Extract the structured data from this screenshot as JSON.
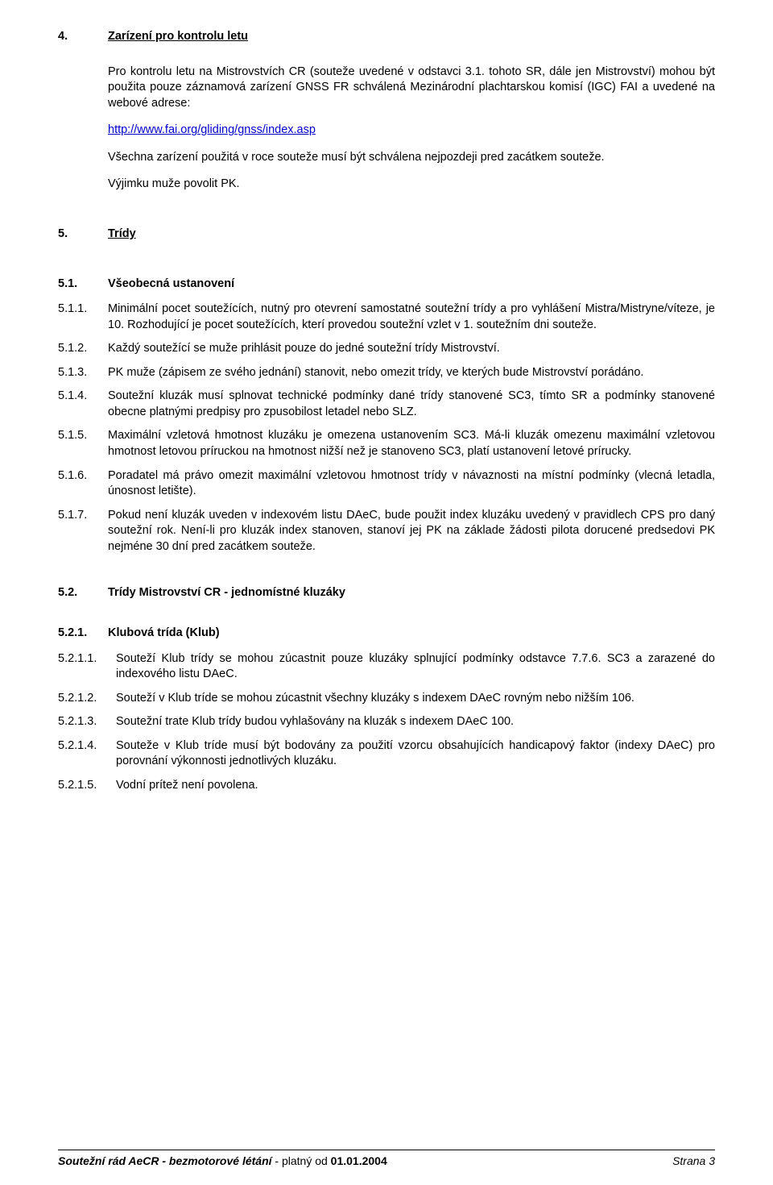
{
  "sec4": {
    "num": "4.",
    "title": "Zarízení pro kontrolu letu",
    "p1a": "Pro kontrolu letu na Mistrovstvích CR (souteže uvedené v odstavci 3.1. tohoto SR, dále jen Mistrovství) mohou být použita pouze záznamová zarízení GNSS FR schválená Mezinárodní plachtarskou komisí (IGC) FAI a uvedené na webové adrese:",
    "url": "http://www.fai.org/gliding/gnss/index.asp",
    "p2": "Všechna zarízení použitá v roce souteže musí být schválena nejpozdeji pred zacátkem souteže.",
    "p3": "Výjimku muže povolit PK."
  },
  "sec5": {
    "num": "5.",
    "title": "Trídy"
  },
  "sec51": {
    "num": "5.1.",
    "title": "Všeobecná ustanovení",
    "items": [
      {
        "num": "5.1.1.",
        "text": "Minimální pocet soutežících, nutný pro otevrení samostatné soutežní trídy a pro vyhlášení Mistra/Mistryne/víteze, je 10. Rozhodující je pocet soutežících, kterí provedou soutežní vzlet v 1. soutežním dni souteže."
      },
      {
        "num": "5.1.2.",
        "text": "Každý soutežící se muže prihlásit pouze do jedné soutežní trídy Mistrovství."
      },
      {
        "num": "5.1.3.",
        "text": "PK muže (zápisem ze svého jednání) stanovit, nebo omezit trídy, ve kterých bude Mistrovství porádáno."
      },
      {
        "num": "5.1.4.",
        "text": "Soutežní kluzák musí splnovat technické podmínky dané trídy stanovené SC3, tímto SR a podmínky stanovené obecne platnými predpisy pro zpusobilost letadel nebo SLZ."
      },
      {
        "num": "5.1.5.",
        "text": "Maximální vzletová hmotnost kluzáku je omezena ustanovením SC3. Má-li kluzák omezenu maximální vzletovou hmotnost letovou príruckou na hmotnost nižší než je stanoveno SC3, platí ustanovení letové prírucky."
      },
      {
        "num": "5.1.6.",
        "text": "Poradatel má právo omezit maximální vzletovou hmotnost trídy v návaznosti na místní  podmínky (vlecná letadla, únosnost letište)."
      },
      {
        "num": "5.1.7.",
        "text": "Pokud není kluzák uveden v indexovém listu DAeC, bude použit index kluzáku uvedený v pravidlech CPS pro daný soutežní rok. Není-li pro kluzák index stanoven, stanoví jej PK na základe žádosti pilota dorucené predsedovi PK nejméne 30 dní pred zacátkem souteže."
      }
    ]
  },
  "sec52": {
    "num": "5.2.",
    "title": "Trídy Mistrovství CR - jednomístné kluzáky"
  },
  "sec521": {
    "num": "5.2.1.",
    "title": "Klubová trída (Klub)",
    "items": [
      {
        "num": "5.2.1.1.",
        "text": "Souteží Klub trídy se mohou zúcastnit pouze kluzáky splnující podmínky odstavce 7.7.6. SC3 a zarazené do indexového listu DAeC."
      },
      {
        "num": "5.2.1.2.",
        "text": "Souteží v Klub tríde se mohou zúcastnit všechny kluzáky s indexem DAeC rovným nebo nižším 106."
      },
      {
        "num": "5.2.1.3.",
        "text": "Soutežní trate Klub trídy budou vyhlašovány na kluzák s indexem DAeC 100."
      },
      {
        "num": "5.2.1.4.",
        "text": "Souteže v Klub tríde musí být bodovány za použití vzorcu obsahujících handicapový faktor (indexy DAeC) pro porovnání výkonnosti jednotlivých kluzáku."
      },
      {
        "num": "5.2.1.5.",
        "text": "Vodní prítež není povolena."
      }
    ]
  },
  "footer": {
    "left_ital": "Soutežní rád AeCR - bezmotorové létání",
    "left_plain": " - platný od ",
    "left_bold": "01.01.2004",
    "right": "Strana 3"
  }
}
